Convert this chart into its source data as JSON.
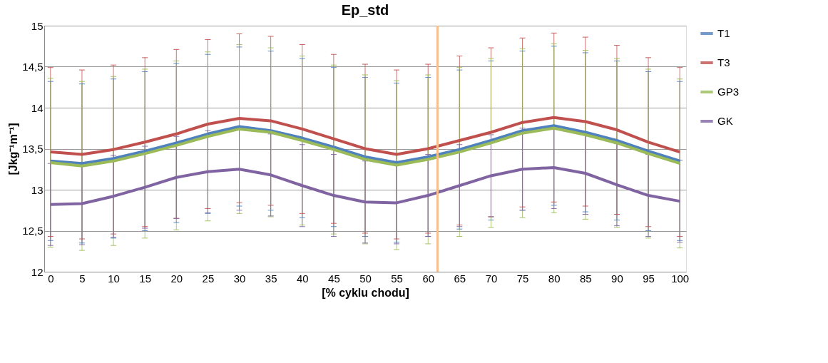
{
  "chart_data": {
    "type": "line",
    "title": "Ep_std",
    "xlabel": "[% cyklu chodu]",
    "ylabel": "[Jkg⁻¹m⁻¹]",
    "x": [
      0,
      5,
      10,
      15,
      20,
      25,
      30,
      35,
      40,
      45,
      50,
      55,
      60,
      65,
      70,
      75,
      80,
      85,
      90,
      95,
      100
    ],
    "series": [
      {
        "name": "T1",
        "color": "#4f81bd",
        "values": [
          13.35,
          13.32,
          13.38,
          13.47,
          13.57,
          13.68,
          13.77,
          13.72,
          13.63,
          13.52,
          13.4,
          13.33,
          13.4,
          13.49,
          13.6,
          13.72,
          13.78,
          13.7,
          13.6,
          13.47,
          13.35
        ],
        "errors": [
          0.97,
          0.97,
          0.97,
          0.97,
          0.97,
          0.97,
          0.97,
          0.97,
          0.97,
          0.97,
          0.97,
          0.97,
          0.97,
          0.97,
          0.97,
          0.97,
          0.97,
          0.97,
          0.97,
          0.97,
          0.97
        ]
      },
      {
        "name": "T3",
        "color": "#c0504d",
        "values": [
          13.46,
          13.43,
          13.49,
          13.58,
          13.68,
          13.8,
          13.87,
          13.84,
          13.74,
          13.62,
          13.5,
          13.43,
          13.5,
          13.6,
          13.7,
          13.82,
          13.88,
          13.83,
          13.73,
          13.58,
          13.46
        ],
        "errors": [
          1.03,
          1.03,
          1.03,
          1.03,
          1.03,
          1.03,
          1.03,
          1.03,
          1.03,
          1.03,
          1.03,
          1.03,
          1.03,
          1.03,
          1.03,
          1.03,
          1.03,
          1.03,
          1.03,
          1.03,
          1.03
        ]
      },
      {
        "name": "GP3",
        "color": "#9bbb59",
        "values": [
          13.33,
          13.29,
          13.35,
          13.44,
          13.54,
          13.65,
          13.74,
          13.7,
          13.6,
          13.49,
          13.37,
          13.3,
          13.37,
          13.46,
          13.57,
          13.69,
          13.75,
          13.67,
          13.57,
          13.44,
          13.32
        ],
        "errors": [
          1.03,
          1.03,
          1.03,
          1.03,
          1.03,
          1.03,
          1.03,
          1.03,
          1.03,
          1.03,
          1.03,
          1.03,
          1.03,
          1.03,
          1.03,
          1.03,
          1.03,
          1.03,
          1.03,
          1.03,
          1.03
        ]
      },
      {
        "name": "GK",
        "color": "#8064a2",
        "values": [
          12.82,
          12.83,
          12.92,
          13.03,
          13.15,
          13.22,
          13.25,
          13.18,
          13.05,
          12.93,
          12.85,
          12.84,
          12.93,
          13.05,
          13.17,
          13.25,
          13.27,
          13.2,
          13.06,
          12.93,
          12.86
        ],
        "errors": [
          0.5,
          0.5,
          0.5,
          0.5,
          0.5,
          0.5,
          0.5,
          0.5,
          0.5,
          0.5,
          0.5,
          0.5,
          0.5,
          0.5,
          0.5,
          0.5,
          0.5,
          0.5,
          0.5,
          0.5,
          0.5
        ]
      }
    ],
    "xlim": [
      -1,
      101
    ],
    "xticks": [
      0,
      5,
      10,
      15,
      20,
      25,
      30,
      35,
      40,
      45,
      50,
      55,
      60,
      65,
      70,
      75,
      80,
      85,
      90,
      95,
      100
    ],
    "ylim": [
      12,
      15
    ],
    "yticks": [
      12,
      {
        "value": 12.5,
        "label": "12,5"
      },
      13,
      {
        "value": 13.5,
        "label": "13,5"
      },
      14,
      {
        "value": 14.5,
        "label": "14,5"
      },
      15
    ],
    "ref_lines": [
      {
        "axis": "x",
        "value": 61.5,
        "label": null,
        "color": "#f9be8f"
      }
    ],
    "grid": "y",
    "legend": "right",
    "marker": "none",
    "line_style": "solid"
  }
}
